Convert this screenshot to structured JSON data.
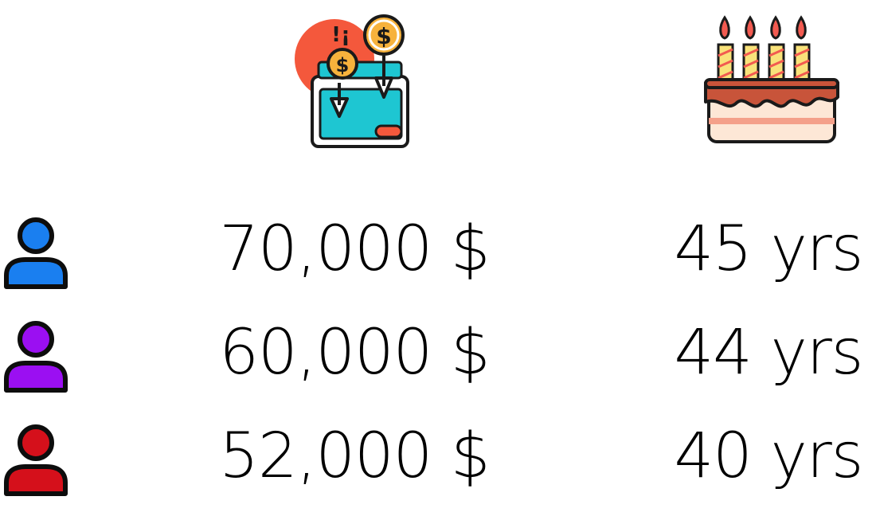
{
  "header": {
    "income_icon": "wallet-coins-icon",
    "age_icon": "birthday-cake-icon"
  },
  "rows": [
    {
      "person_icon": "person-icon",
      "color": "#1a7ff0",
      "salary": "70,000 $",
      "age": "45 yrs"
    },
    {
      "person_icon": "person-icon",
      "color": "#9b0ff2",
      "salary": "60,000 $",
      "age": "44 yrs"
    },
    {
      "person_icon": "person-icon",
      "color": "#d5101b",
      "salary": "52,000 $",
      "age": "40 yrs"
    }
  ]
}
